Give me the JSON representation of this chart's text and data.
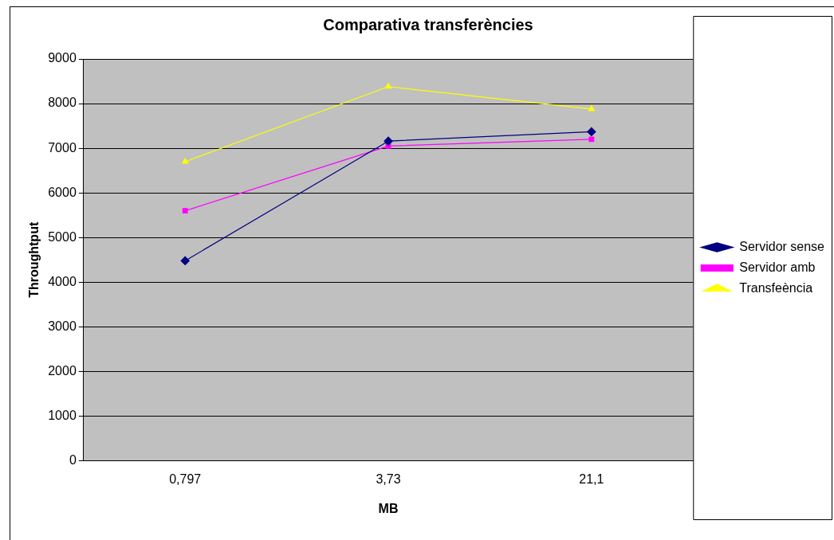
{
  "chart_data": {
    "type": "line",
    "title": "Comparativa transferències",
    "xlabel": "MB",
    "ylabel": "Throughtput",
    "categories": [
      "0,797",
      "3,73",
      "21,1"
    ],
    "series": [
      {
        "name": "Servidor sense",
        "color": "#000080",
        "marker": "diamond",
        "values": [
          4480,
          7160,
          7370
        ]
      },
      {
        "name": "Servidor amb",
        "color": "#ff00ff",
        "marker": "square",
        "values": [
          5600,
          7050,
          7200
        ]
      },
      {
        "name": "Transfeència",
        "color": "#ffff00",
        "marker": "triangle",
        "values": [
          6700,
          8380,
          7880
        ]
      }
    ],
    "ylim": [
      0,
      9000
    ],
    "yticks": [
      0,
      1000,
      2000,
      3000,
      4000,
      5000,
      6000,
      7000,
      8000,
      9000
    ],
    "grid": "y",
    "legend": "right",
    "line_style": "solid"
  }
}
